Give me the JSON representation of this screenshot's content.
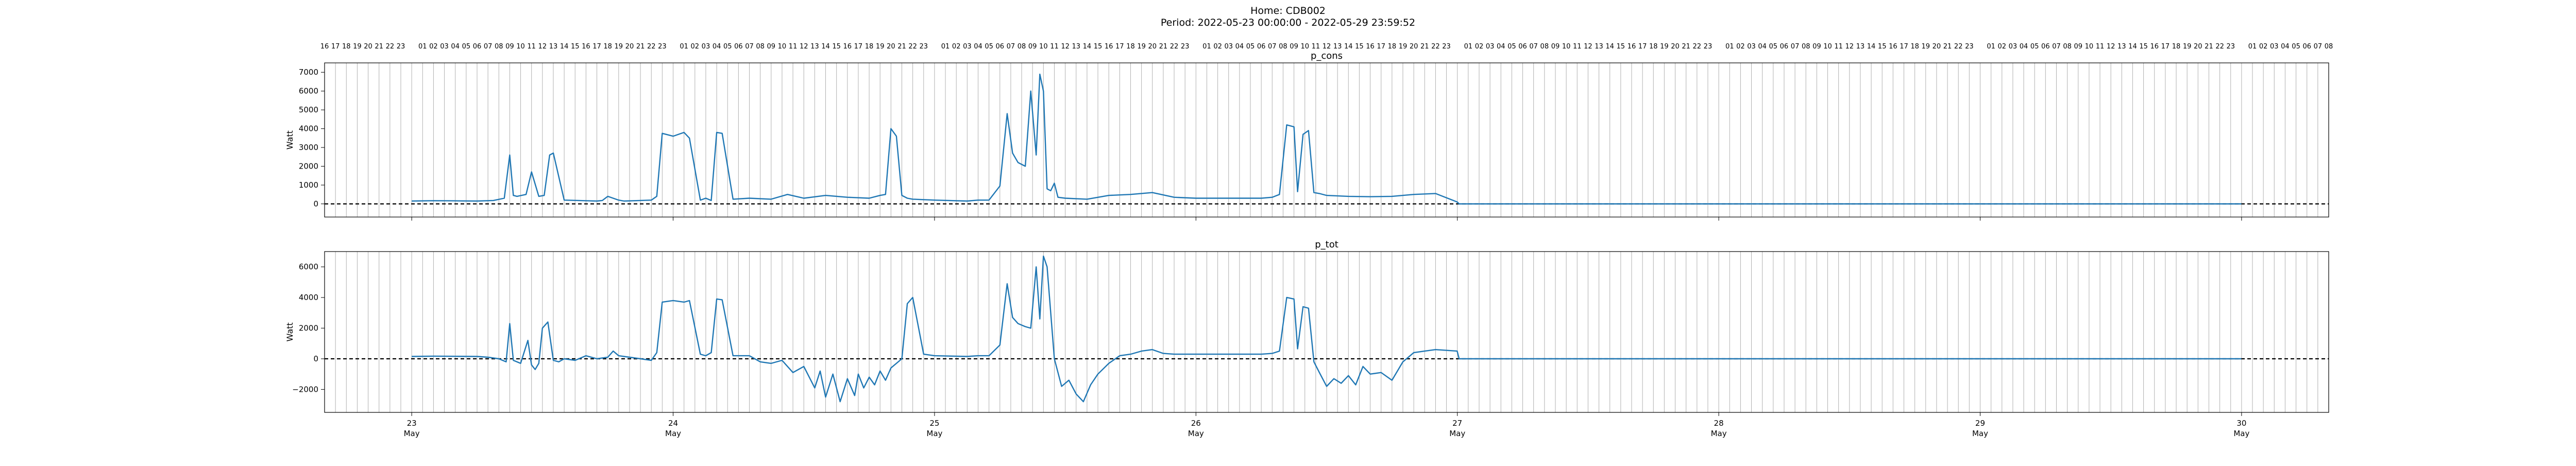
{
  "figure": {
    "suptitle_line1": "Home: CDB002",
    "suptitle_line2": "Period: 2022-05-23 00:00:00 - 2022-05-29 23:59:52"
  },
  "chart_data": [
    {
      "type": "line",
      "title": "p_cons",
      "xlabel": "",
      "ylabel": "Watt",
      "x_start": "2022-05-22 16:00",
      "x_end": "2022-05-30 08:00",
      "x_major_ticks": [
        {
          "at": "2022-05-23",
          "day": "23",
          "month": "May"
        },
        {
          "at": "2022-05-24",
          "day": "24",
          "month": "May"
        },
        {
          "at": "2022-05-25",
          "day": "25",
          "month": "May"
        },
        {
          "at": "2022-05-26",
          "day": "26",
          "month": "May"
        },
        {
          "at": "2022-05-27",
          "day": "27",
          "month": "May"
        },
        {
          "at": "2022-05-28",
          "day": "28",
          "month": "May"
        },
        {
          "at": "2022-05-29",
          "day": "29",
          "month": "May"
        },
        {
          "at": "2022-05-30",
          "day": "30",
          "month": "May"
        }
      ],
      "x_top_hour_ticks": true,
      "ylim": [
        -700,
        7500
      ],
      "yticks": [
        0,
        1000,
        2000,
        3000,
        4000,
        5000,
        6000,
        7000
      ],
      "grid": "vertical hourly",
      "reference_line": 0,
      "series": [
        {
          "x": [
            "2022-05-23 00:00",
            "2022-05-23 02:00",
            "2022-05-23 04:00",
            "2022-05-23 06:00",
            "2022-05-23 07:30",
            "2022-05-23 08:30",
            "2022-05-23 09:00",
            "2022-05-23 09:20",
            "2022-05-23 09:40",
            "2022-05-23 10:30",
            "2022-05-23 11:00",
            "2022-05-23 11:40",
            "2022-05-23 12:10",
            "2022-05-23 12:40",
            "2022-05-23 13:00",
            "2022-05-23 14:00",
            "2022-05-23 17:00",
            "2022-05-23 17:30",
            "2022-05-23 18:00",
            "2022-05-23 19:00",
            "2022-05-23 19:30",
            "2022-05-23 21:00",
            "2022-05-23 22:00",
            "2022-05-23 22:30",
            "2022-05-23 23:00",
            "2022-05-24 00:00",
            "2022-05-24 01:00",
            "2022-05-24 01:30",
            "2022-05-24 02:30",
            "2022-05-24 03:00",
            "2022-05-24 03:30",
            "2022-05-24 04:00",
            "2022-05-24 04:30",
            "2022-05-24 05:30",
            "2022-05-24 07:00",
            "2022-05-24 09:00",
            "2022-05-24 10:30",
            "2022-05-24 12:00",
            "2022-05-24 14:00",
            "2022-05-24 16:00",
            "2022-05-24 18:00",
            "2022-05-24 19:00",
            "2022-05-24 19:30",
            "2022-05-24 20:00",
            "2022-05-24 20:30",
            "2022-05-24 21:00",
            "2022-05-24 21:30",
            "2022-05-24 22:00",
            "2022-05-25 00:00",
            "2022-05-25 03:00",
            "2022-05-25 04:00",
            "2022-05-25 05:00",
            "2022-05-25 06:00",
            "2022-05-25 06:40",
            "2022-05-25 07:10",
            "2022-05-25 07:40",
            "2022-05-25 08:20",
            "2022-05-25 08:50",
            "2022-05-25 09:20",
            "2022-05-25 09:40",
            "2022-05-25 10:00",
            "2022-05-25 10:20",
            "2022-05-25 10:40",
            "2022-05-25 11:00",
            "2022-05-25 11:20",
            "2022-05-25 12:00",
            "2022-05-25 14:00",
            "2022-05-25 16:00",
            "2022-05-25 18:00",
            "2022-05-25 20:00",
            "2022-05-25 22:00",
            "2022-05-26 00:00",
            "2022-05-26 03:00",
            "2022-05-26 06:00",
            "2022-05-26 07:00",
            "2022-05-26 07:40",
            "2022-05-26 08:20",
            "2022-05-26 09:00",
            "2022-05-26 09:20",
            "2022-05-26 09:50",
            "2022-05-26 10:20",
            "2022-05-26 10:50",
            "2022-05-26 11:20",
            "2022-05-26 12:00",
            "2022-05-26 14:00",
            "2022-05-26 16:00",
            "2022-05-26 18:00",
            "2022-05-26 20:00",
            "2022-05-26 22:00",
            "2022-05-26 23:59",
            "2022-05-27 00:10",
            "2022-05-28 00:00",
            "2022-05-29 00:00",
            "2022-05-29 23:59"
          ],
          "y": [
            150,
            170,
            160,
            150,
            180,
            300,
            2600,
            450,
            400,
            500,
            1700,
            400,
            450,
            2600,
            2700,
            200,
            150,
            180,
            400,
            200,
            150,
            180,
            200,
            400,
            3750,
            3600,
            3800,
            3500,
            200,
            300,
            180,
            3800,
            3750,
            250,
            300,
            250,
            500,
            300,
            450,
            350,
            300,
            450,
            500,
            4000,
            3600,
            450,
            300,
            250,
            200,
            150,
            200,
            200,
            950,
            4800,
            2700,
            2200,
            2000,
            6000,
            2600,
            6900,
            6000,
            800,
            700,
            1100,
            350,
            300,
            250,
            450,
            500,
            600,
            350,
            300,
            300,
            300,
            350,
            500,
            4200,
            4100,
            650,
            3700,
            3900,
            600,
            550,
            450,
            400,
            380,
            400,
            500,
            550,
            100,
            0,
            0,
            0,
            0
          ]
        }
      ]
    },
    {
      "type": "line",
      "title": "p_tot",
      "xlabel": "",
      "ylabel": "Watt",
      "x_start": "2022-05-22 16:00",
      "x_end": "2022-05-30 08:00",
      "x_major_ticks": [
        {
          "at": "2022-05-23",
          "day": "23",
          "month": "May"
        },
        {
          "at": "2022-05-24",
          "day": "24",
          "month": "May"
        },
        {
          "at": "2022-05-25",
          "day": "25",
          "month": "May"
        },
        {
          "at": "2022-05-26",
          "day": "26",
          "month": "May"
        },
        {
          "at": "2022-05-27",
          "day": "27",
          "month": "May"
        },
        {
          "at": "2022-05-28",
          "day": "28",
          "month": "May"
        },
        {
          "at": "2022-05-29",
          "day": "29",
          "month": "May"
        },
        {
          "at": "2022-05-30",
          "day": "30",
          "month": "May"
        }
      ],
      "ylim": [
        -3500,
        7000
      ],
      "yticks": [
        -2000,
        0,
        2000,
        4000,
        6000
      ],
      "grid": "vertical hourly",
      "reference_line": 0,
      "series": [
        {
          "x": [
            "2022-05-23 00:00",
            "2022-05-23 02:00",
            "2022-05-23 04:00",
            "2022-05-23 06:00",
            "2022-05-23 07:00",
            "2022-05-23 08:00",
            "2022-05-23 08:40",
            "2022-05-23 09:00",
            "2022-05-23 09:20",
            "2022-05-23 10:00",
            "2022-05-23 10:40",
            "2022-05-23 11:00",
            "2022-05-23 11:20",
            "2022-05-23 11:40",
            "2022-05-23 12:00",
            "2022-05-23 12:30",
            "2022-05-23 13:00",
            "2022-05-23 13:30",
            "2022-05-23 14:00",
            "2022-05-23 15:00",
            "2022-05-23 16:00",
            "2022-05-23 17:00",
            "2022-05-23 18:00",
            "2022-05-23 18:30",
            "2022-05-23 19:00",
            "2022-05-23 20:00",
            "2022-05-23 21:00",
            "2022-05-23 22:00",
            "2022-05-23 22:30",
            "2022-05-23 23:00",
            "2022-05-24 00:00",
            "2022-05-24 01:00",
            "2022-05-24 01:30",
            "2022-05-24 02:30",
            "2022-05-24 03:00",
            "2022-05-24 03:30",
            "2022-05-24 04:00",
            "2022-05-24 04:30",
            "2022-05-24 05:30",
            "2022-05-24 07:00",
            "2022-05-24 08:00",
            "2022-05-24 09:00",
            "2022-05-24 10:00",
            "2022-05-24 11:00",
            "2022-05-24 12:00",
            "2022-05-24 13:00",
            "2022-05-24 13:30",
            "2022-05-24 14:00",
            "2022-05-24 14:40",
            "2022-05-24 15:20",
            "2022-05-24 16:00",
            "2022-05-24 16:40",
            "2022-05-24 17:00",
            "2022-05-24 17:30",
            "2022-05-24 18:00",
            "2022-05-24 18:30",
            "2022-05-24 19:00",
            "2022-05-24 19:30",
            "2022-05-24 20:00",
            "2022-05-24 21:00",
            "2022-05-24 21:30",
            "2022-05-24 22:00",
            "2022-05-24 23:00",
            "2022-05-25 00:00",
            "2022-05-25 03:00",
            "2022-05-25 04:00",
            "2022-05-25 05:00",
            "2022-05-25 06:00",
            "2022-05-25 06:40",
            "2022-05-25 07:10",
            "2022-05-25 07:40",
            "2022-05-25 08:20",
            "2022-05-25 08:50",
            "2022-05-25 09:20",
            "2022-05-25 09:40",
            "2022-05-25 10:00",
            "2022-05-25 10:20",
            "2022-05-25 11:00",
            "2022-05-25 11:40",
            "2022-05-25 12:20",
            "2022-05-25 13:00",
            "2022-05-25 13:40",
            "2022-05-25 14:20",
            "2022-05-25 15:00",
            "2022-05-25 16:00",
            "2022-05-25 17:00",
            "2022-05-25 18:00",
            "2022-05-25 19:00",
            "2022-05-25 20:00",
            "2022-05-25 21:00",
            "2022-05-25 22:00",
            "2022-05-26 00:00",
            "2022-05-26 03:00",
            "2022-05-26 06:00",
            "2022-05-26 07:00",
            "2022-05-26 07:40",
            "2022-05-26 08:20",
            "2022-05-26 09:00",
            "2022-05-26 09:20",
            "2022-05-26 09:50",
            "2022-05-26 10:20",
            "2022-05-26 10:50",
            "2022-05-26 11:20",
            "2022-05-26 12:00",
            "2022-05-26 12:40",
            "2022-05-26 13:20",
            "2022-05-26 14:00",
            "2022-05-26 14:40",
            "2022-05-26 15:20",
            "2022-05-26 16:00",
            "2022-05-26 17:00",
            "2022-05-26 18:00",
            "2022-05-26 19:00",
            "2022-05-26 20:00",
            "2022-05-26 21:00",
            "2022-05-26 22:00",
            "2022-05-26 23:59",
            "2022-05-27 00:10",
            "2022-05-28 00:00",
            "2022-05-29 00:00",
            "2022-05-29 23:59"
          ],
          "y": [
            150,
            170,
            160,
            150,
            100,
            0,
            -200,
            2300,
            -100,
            -300,
            1200,
            -400,
            -700,
            -300,
            2000,
            2400,
            -100,
            -200,
            0,
            -100,
            200,
            0,
            100,
            500,
            200,
            100,
            0,
            -100,
            400,
            3700,
            3800,
            3700,
            3800,
            300,
            200,
            400,
            3900,
            3850,
            200,
            200,
            -200,
            -300,
            -100,
            -900,
            -500,
            -1900,
            -800,
            -2500,
            -1000,
            -2800,
            -1300,
            -2400,
            -1000,
            -1900,
            -1200,
            -1700,
            -800,
            -1400,
            -600,
            0,
            3600,
            4000,
            300,
            200,
            150,
            200,
            200,
            900,
            4900,
            2700,
            2300,
            2100,
            2000,
            6000,
            2600,
            6700,
            6000,
            0,
            -1800,
            -1400,
            -2300,
            -2800,
            -1700,
            -1000,
            -300,
            200,
            300,
            500,
            600,
            350,
            300,
            300,
            300,
            300,
            350,
            500,
            4000,
            3900,
            650,
            3400,
            3300,
            -200,
            -900,
            -1800,
            -1300,
            -1600,
            -1100,
            -1700,
            -500,
            -1000,
            -900,
            -1400,
            -200,
            400,
            500,
            600,
            500,
            0,
            0,
            0,
            0
          ]
        }
      ]
    }
  ]
}
